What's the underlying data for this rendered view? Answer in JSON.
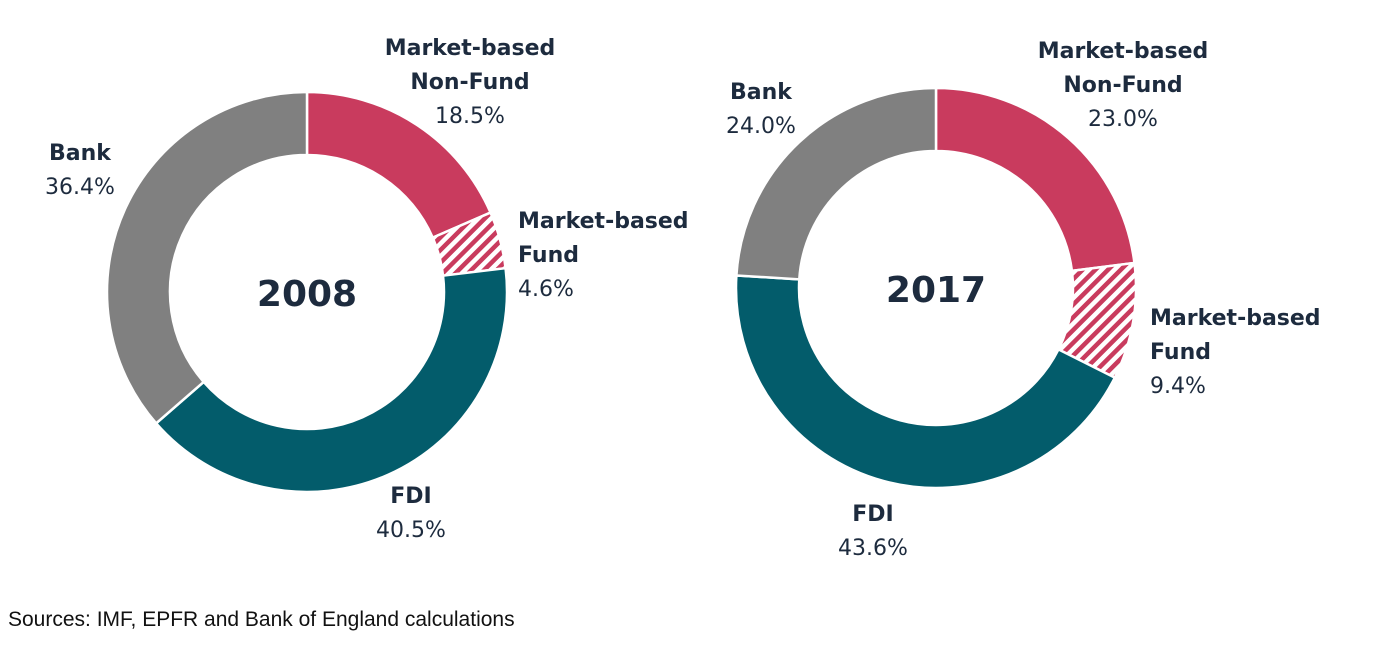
{
  "chart_data": [
    {
      "type": "pie",
      "title": "2008",
      "categories": [
        "Market-based Non-Fund",
        "Market-based Fund",
        "FDI",
        "Bank"
      ],
      "values": [
        18.5,
        4.6,
        40.5,
        36.4
      ],
      "value_labels": [
        "18.5%",
        "4.6%",
        "40.5%",
        "36.4%"
      ],
      "label_lines": [
        [
          "Market-based",
          "Non-Fund"
        ],
        [
          "Market-based",
          "Fund"
        ],
        [
          "FDI"
        ],
        [
          "Bank"
        ]
      ]
    },
    {
      "type": "pie",
      "title": "2017",
      "categories": [
        "Market-based Non-Fund",
        "Market-based Fund",
        "FDI",
        "Bank"
      ],
      "values": [
        23.0,
        9.4,
        43.6,
        24.0
      ],
      "value_labels": [
        "23.0%",
        "9.4%",
        "43.6%",
        "24.0%"
      ],
      "label_lines": [
        [
          "Market-based",
          "Non-Fund"
        ],
        [
          "Market-based",
          "Fund"
        ],
        [
          "FDI"
        ],
        [
          "Bank"
        ]
      ]
    }
  ],
  "colors": {
    "Market-based Non-Fund": "#c93b5e",
    "Market-based Fund": "#c93b5e",
    "FDI": "#035c6b",
    "Bank": "#808080"
  },
  "hatched_categories": [
    "Market-based Fund"
  ],
  "sources": "Sources: IMF, EPFR and Bank of England calculations"
}
